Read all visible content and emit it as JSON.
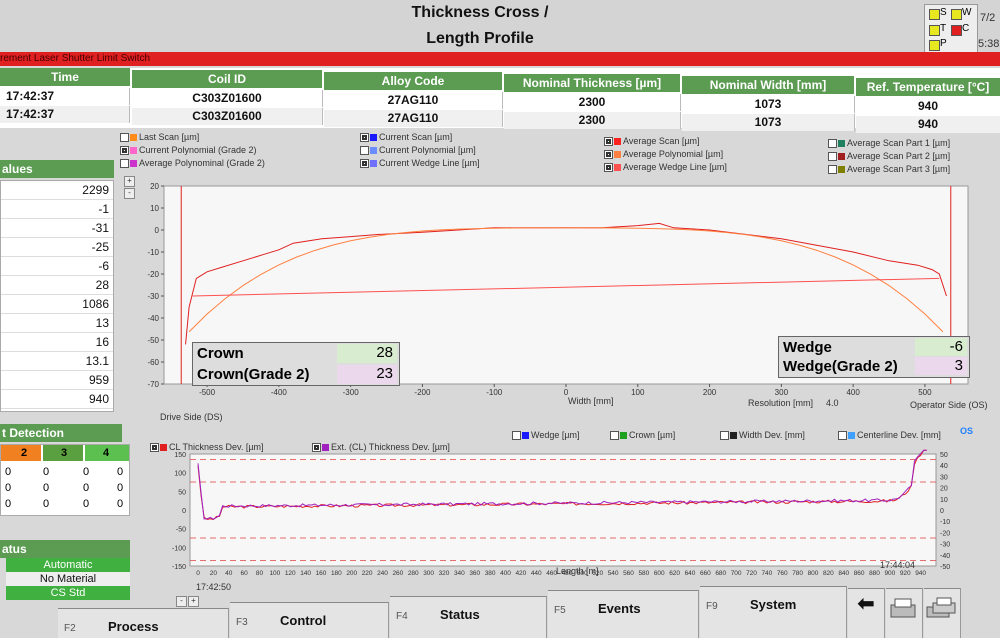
{
  "header": {
    "title_line1": "Thickness Cross /",
    "title_line2": "Length Profile",
    "date_partial": "7/2",
    "time_partial": "5:38",
    "indicators": [
      "S",
      "W",
      "T",
      "C",
      "P"
    ]
  },
  "alarm_text": "rement   Laser Shutter Limit Switch",
  "coil_table": {
    "headers": [
      "Time",
      "Coil ID",
      "Alloy Code",
      "Nominal Thickness [µm]",
      "Nominal Width [mm]",
      "Ref. Temperature [°C]"
    ],
    "rows": [
      [
        "17:42:37",
        "C303Z01600",
        "27AG110",
        "2300",
        "1073",
        "940"
      ],
      [
        "17:42:37",
        "C303Z01600",
        "27AG110",
        "2300",
        "1073",
        "940"
      ]
    ]
  },
  "values_panel": {
    "title": "alues",
    "values": [
      "2299",
      "-1",
      "-31",
      "-25",
      "-6",
      "28",
      "1086",
      "13",
      "16",
      "13.1",
      "959",
      "940"
    ]
  },
  "detection_panel": {
    "title": "t Detection",
    "headers": [
      "2",
      "3",
      "4"
    ],
    "rows": [
      [
        "0",
        "0",
        "0",
        "0"
      ],
      [
        "0",
        "0",
        "0",
        "0"
      ],
      [
        "0",
        "0",
        "0",
        "0"
      ]
    ]
  },
  "status_panel": {
    "title": "atus",
    "items": [
      "Automatic",
      "No Material",
      "CS Std"
    ]
  },
  "cross_legend": [
    {
      "label": "Last Scan [µm]",
      "color": "#ff8c1a",
      "checked": false
    },
    {
      "label": "Current Polynomial (Grade 2)",
      "color": "#ff66cc",
      "checked": true
    },
    {
      "label": "Average Polynominal (Grade 2)",
      "color": "#cc33cc",
      "checked": false
    },
    {
      "label": "Current Scan [µm]",
      "color": "#1a1aff",
      "checked": true
    },
    {
      "label": "Current Polynomial [µm]",
      "color": "#6a8cff",
      "checked": false
    },
    {
      "label": "Current Wedge Line [µm]",
      "color": "#7070ff",
      "checked": true
    },
    {
      "label": "Average Scan [µm]",
      "color": "#ff2020",
      "checked": true
    },
    {
      "label": "Average Polynomial [µm]",
      "color": "#ff8040",
      "checked": true
    },
    {
      "label": "Average Wedge Line [µm]",
      "color": "#ff5050",
      "checked": true
    },
    {
      "label": "Average Scan Part 1 [µm]",
      "color": "#208060",
      "checked": false
    },
    {
      "label": "Average Scan Part 2 [µm]",
      "color": "#a02020",
      "checked": false
    },
    {
      "label": "Average Scan Part 3 [µm]",
      "color": "#808000",
      "checked": false
    }
  ],
  "cross_chart": {
    "y_ticks": [
      "20",
      "10",
      "0",
      "-10",
      "-20",
      "-30",
      "-40",
      "-50",
      "-60",
      "-70"
    ],
    "x_ticks": [
      "-500",
      "-400",
      "-300",
      "-200",
      "-100",
      "0",
      "100",
      "200",
      "300",
      "400",
      "500"
    ],
    "xlabel": "Width [mm]",
    "resolution_label": "Resolution [mm]",
    "resolution_value": "4.0",
    "left_side": "Drive Side (DS)",
    "right_side": "Operator Side (OS)",
    "crown_label": "Crown",
    "crown_value": "28",
    "crown2_label": "Crown(Grade 2)",
    "crown2_value": "23",
    "wedge_label": "Wedge",
    "wedge_value": "-6",
    "wedge2_label": "Wedge(Grade 2)",
    "wedge2_value": "3"
  },
  "length_legend": [
    {
      "label": "CL Thickness Dev. [µm]",
      "color": "#e02020",
      "checked": true
    },
    {
      "label": "Ext. (CL) Thickness Dev. [µm]",
      "color": "#a020c0",
      "checked": true
    },
    {
      "label": "Wedge [µm]",
      "color": "#1a1aff",
      "checked": false
    },
    {
      "label": "Crown [µm]",
      "color": "#20a020",
      "checked": false
    },
    {
      "label": "Width Dev. [mm]",
      "color": "#222222",
      "checked": false
    },
    {
      "label": "Centerline Dev. [mm]",
      "color": "#40a0ff",
      "checked": false
    }
  ],
  "length_chart": {
    "y_left": [
      "150",
      "100",
      "50",
      "0",
      "-50",
      "-100",
      "-150"
    ],
    "y_right": [
      "50",
      "40",
      "30",
      "20",
      "10",
      "0",
      "-10",
      "-20",
      "-30",
      "-40",
      "-50"
    ],
    "x_ticks": [
      "0",
      "20",
      "40",
      "60",
      "80",
      "100",
      "120",
      "140",
      "160",
      "180",
      "200",
      "220",
      "240",
      "260",
      "280",
      "300",
      "320",
      "340",
      "360",
      "380",
      "400",
      "420",
      "440",
      "460",
      "480",
      "500",
      "520",
      "540",
      "560",
      "580",
      "600",
      "620",
      "640",
      "660",
      "680",
      "700",
      "720",
      "740",
      "760",
      "780",
      "800",
      "820",
      "840",
      "860",
      "880",
      "900",
      "920",
      "940"
    ],
    "xlabel": "Length [m]",
    "start_time": "17:42:50",
    "end_time": "17:44:04",
    "os_label": "OS"
  },
  "function_keys": [
    {
      "key": "F2",
      "label": "Process"
    },
    {
      "key": "F3",
      "label": "Control"
    },
    {
      "key": "F4",
      "label": "Status"
    },
    {
      "key": "F5",
      "label": "Events"
    },
    {
      "key": "F9",
      "label": "System"
    }
  ],
  "colors": {
    "header_green": "#5b9b52",
    "alarm_red": "#e02020",
    "trace_red": "#e02020",
    "trace_purple": "#a020c0",
    "crown_bg": "#d8ecd0",
    "crown2_bg": "#ecd8ec"
  },
  "icons": [
    "back-arrow-icon",
    "printer-icon",
    "printer-stack-icon"
  ]
}
